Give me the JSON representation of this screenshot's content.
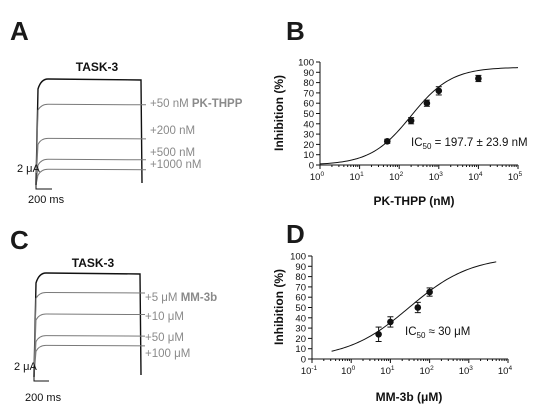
{
  "traces": [
    {
      "letter": "A",
      "title": "TASK-3",
      "scale_current": "2 μA",
      "scale_time": "200 ms",
      "labels": [
        {
          "plain": "+50 nM",
          "bold": "PK-THPP"
        },
        {
          "plain": "+200 nM",
          "bold": ""
        },
        {
          "plain": "+500 nM",
          "bold": ""
        },
        {
          "plain": "+1000 nM",
          "bold": ""
        }
      ],
      "levels": [
        1.0,
        0.77,
        0.46,
        0.27,
        0.18
      ]
    },
    {
      "letter": "C",
      "title": "TASK-3",
      "scale_current": "2 μA",
      "scale_time": "200 ms",
      "labels": [
        {
          "plain": "+5 μM",
          "bold": "MM-3b"
        },
        {
          "plain": "+10 μM",
          "bold": ""
        },
        {
          "plain": "+50 μM",
          "bold": ""
        },
        {
          "plain": "+100 μM",
          "bold": ""
        }
      ],
      "levels": [
        1.0,
        0.82,
        0.62,
        0.42,
        0.33
      ]
    }
  ],
  "chart_data": [
    {
      "type": "scatter",
      "letter": "B",
      "xlabel": "PK-THPP (nM)",
      "ylabel": "Inhibition (%)",
      "xscale": "log",
      "xlim_exp": [
        0,
        5
      ],
      "ylim": [
        0,
        100
      ],
      "yticks": [
        0,
        10,
        20,
        30,
        40,
        50,
        60,
        70,
        80,
        90,
        100
      ],
      "annotation": {
        "prefix": "IC",
        "sub": "50",
        "suffix": " = 197.7 ± 23.9 nM"
      },
      "points": [
        {
          "x": 50,
          "y": 23,
          "err": 2
        },
        {
          "x": 200,
          "y": 43,
          "err": 3
        },
        {
          "x": 500,
          "y": 60,
          "err": 3
        },
        {
          "x": 1000,
          "y": 72,
          "err": 4
        },
        {
          "x": 10000,
          "y": 84,
          "err": 3
        }
      ],
      "fit": {
        "ic50": 197.7,
        "top": 95,
        "hill": 0.85,
        "x_from_exp": 0,
        "x_to_exp": 5
      }
    },
    {
      "type": "scatter",
      "letter": "D",
      "xlabel": "MM-3b (μM)",
      "ylabel": "Inhibition (%)",
      "xscale": "log",
      "xlim_exp": [
        -1,
        4
      ],
      "ylim": [
        0,
        100
      ],
      "yticks": [
        0,
        10,
        20,
        30,
        40,
        50,
        60,
        70,
        80,
        90,
        100
      ],
      "annotation": {
        "prefix": "IC",
        "sub": "50",
        "suffix": " ≈ 30 μM"
      },
      "points": [
        {
          "x": 5,
          "y": 24,
          "err": 7
        },
        {
          "x": 10,
          "y": 36,
          "err": 5
        },
        {
          "x": 50,
          "y": 50,
          "err": 5
        },
        {
          "x": 100,
          "y": 65,
          "err": 4
        }
      ],
      "fit": {
        "ic50": 30,
        "top": 100,
        "hill": 0.55,
        "x_from_exp": -0.5,
        "x_to_exp": 3.7
      }
    }
  ]
}
